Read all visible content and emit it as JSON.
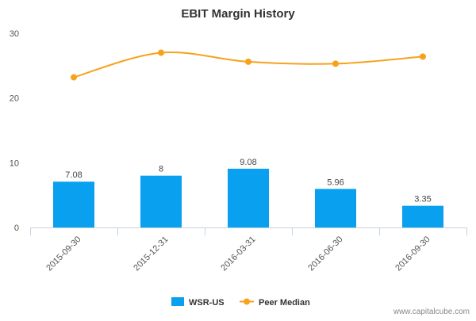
{
  "chart_data": {
    "type": "bar",
    "title": "EBIT Margin History",
    "categories": [
      "2015-09-30",
      "2015-12-31",
      "2016-03-31",
      "2016-06-30",
      "2016-09-30"
    ],
    "series": [
      {
        "name": "WSR-US",
        "type": "bar",
        "values": [
          7.08,
          8,
          9.08,
          5.96,
          3.35
        ],
        "labels": [
          "7.08",
          "8",
          "9.08",
          "5.96",
          "3.35"
        ],
        "color": "#0aa0f0"
      },
      {
        "name": "Peer Median",
        "type": "line",
        "values": [
          23.2,
          27.0,
          25.6,
          25.3,
          26.4
        ],
        "color": "#f7a21b"
      }
    ],
    "yticks": [
      0,
      10,
      20,
      30
    ],
    "ylim": [
      0,
      30
    ],
    "xlabel": "",
    "ylabel": "",
    "grid": false,
    "legend": "bottom-center"
  },
  "footer": "www.capitalcube.com",
  "colors": {
    "axis": "#c8d2e0",
    "text": "#333333"
  }
}
